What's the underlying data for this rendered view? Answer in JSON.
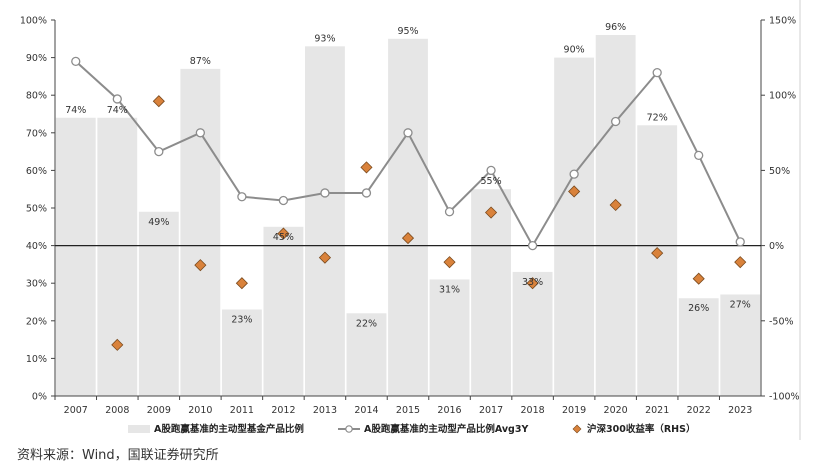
{
  "chart_data": {
    "type": "bar+line+scatter",
    "title": "",
    "categories": [
      "2007",
      "2008",
      "2009",
      "2010",
      "2011",
      "2012",
      "2013",
      "2014",
      "2015",
      "2016",
      "2017",
      "2018",
      "2019",
      "2020",
      "2021",
      "2022",
      "2023"
    ],
    "y_left": {
      "ylim": [
        0,
        100
      ],
      "ticks": [
        "0%",
        "10%",
        "20%",
        "30%",
        "40%",
        "50%",
        "60%",
        "70%",
        "80%",
        "90%",
        "100%"
      ]
    },
    "y_right": {
      "ylim": [
        -100,
        150
      ],
      "ticks": [
        "-100%",
        "-50%",
        "0%",
        "50%",
        "100%",
        "150%"
      ]
    },
    "bars": {
      "name": "A股跑赢基准的主动型基金产品比例",
      "values": [
        74,
        74,
        49,
        87,
        23,
        45,
        93,
        22,
        95,
        31,
        55,
        33,
        90,
        96,
        72,
        26,
        27
      ],
      "labels": [
        "74%",
        "74%",
        "49%",
        "87%",
        "23%",
        "45%",
        "93%",
        "22%",
        "95%",
        "31%",
        "55%",
        "33%",
        "90%",
        "96%",
        "72%",
        "26%",
        "27%"
      ],
      "color": "#e6e6e6"
    },
    "line": {
      "name": "A股跑赢基准的主动型产品比例Avg3Y",
      "values": [
        89,
        79,
        65,
        70,
        53,
        52,
        54,
        54,
        70,
        49,
        60,
        40,
        59,
        73,
        86,
        64,
        41
      ],
      "color": "#8c8c8c"
    },
    "scatter": {
      "name": "沪深300收益率（RHS）",
      "values": [
        -66,
        96,
        -13,
        -25,
        8,
        -8,
        52,
        5,
        -11,
        22,
        -25,
        36,
        27,
        -5,
        -22,
        -11
      ],
      "x_index": [
        1,
        2,
        3,
        4,
        5,
        6,
        7,
        8,
        9,
        10,
        11,
        12,
        13,
        14,
        15,
        16
      ],
      "color": "#d9823b"
    },
    "legend_position": "bottom"
  },
  "source_note": "资料来源：Wind，国联证券研究所"
}
